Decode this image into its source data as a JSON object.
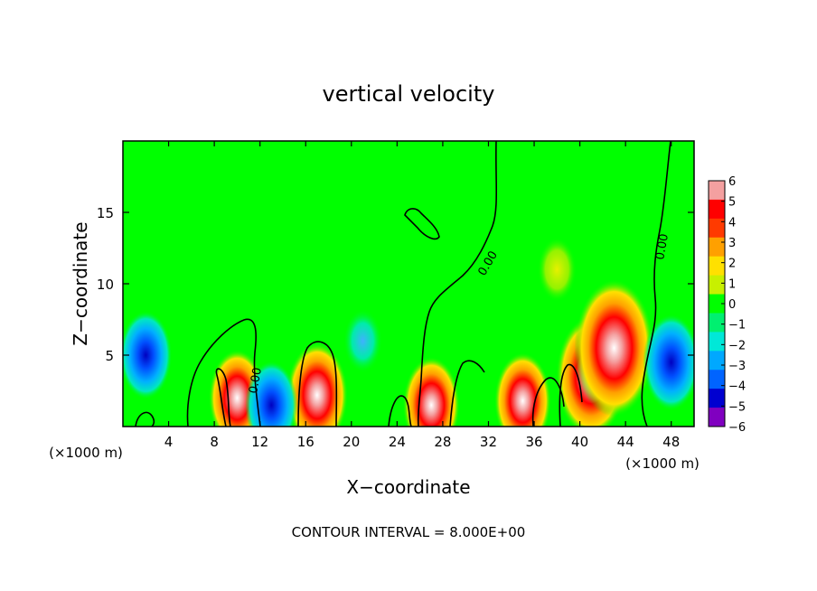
{
  "chart_data": {
    "type": "heatmap",
    "title": "vertical velocity",
    "xlabel": "X−coordinate",
    "ylabel": "Z−coordinate",
    "x_unit": "(×1000 m)",
    "x_unit_right": "(×1000 m)",
    "xlim": [
      0,
      50
    ],
    "ylim": [
      0,
      20
    ],
    "x_ticks": [
      4,
      8,
      12,
      16,
      20,
      24,
      28,
      32,
      36,
      40,
      44,
      48
    ],
    "y_ticks": [
      5,
      10,
      15
    ],
    "x_tick_labels": [
      "4",
      "8",
      "12",
      "16",
      "20",
      "24",
      "28",
      "32",
      "36",
      "40",
      "44",
      "48"
    ],
    "y_tick_labels": [
      "5",
      "10",
      "15"
    ],
    "colorbar": {
      "levels": [
        6,
        5,
        4,
        3,
        2,
        1,
        0,
        -1,
        -2,
        -3,
        -4,
        -5,
        -6
      ],
      "labels": [
        "6",
        "5",
        "4",
        "3",
        "2",
        "1",
        "0",
        "−1",
        "−2",
        "−3",
        "−4",
        "−5",
        "−6"
      ],
      "colors": [
        "#f4a0a0",
        "#ff0000",
        "#ff3a00",
        "#ffa000",
        "#ffe000",
        "#c8f000",
        "#00ff00",
        "#00f070",
        "#00e8d8",
        "#00a8ff",
        "#0064ff",
        "#0000d0",
        "#8000c0"
      ]
    },
    "contour_labels": [
      "0.00",
      "0.00",
      "0.00"
    ],
    "features": [
      {
        "x": 10,
        "z": 2,
        "w": 3.5
      },
      {
        "x": 17,
        "z": 2.2,
        "w": 4
      },
      {
        "x": 35,
        "z": 1.8,
        "w": 3.5
      },
      {
        "x": 41,
        "z": 3.5,
        "w": 5
      },
      {
        "x": 43,
        "z": 5.5,
        "w": 6
      },
      {
        "x": 2,
        "z": 5,
        "w": -3
      },
      {
        "x": 48,
        "z": 4.5,
        "w": -3.5
      },
      {
        "x": 13,
        "z": 1.5,
        "w": -3
      },
      {
        "x": 21,
        "z": 6,
        "w": -1.5
      },
      {
        "x": 38,
        "z": 11,
        "w": 1.5
      },
      {
        "x": 27,
        "z": 1.5,
        "w": 3.5
      }
    ],
    "contour_interval_text": "CONTOUR INTERVAL = 8.000E+00"
  }
}
